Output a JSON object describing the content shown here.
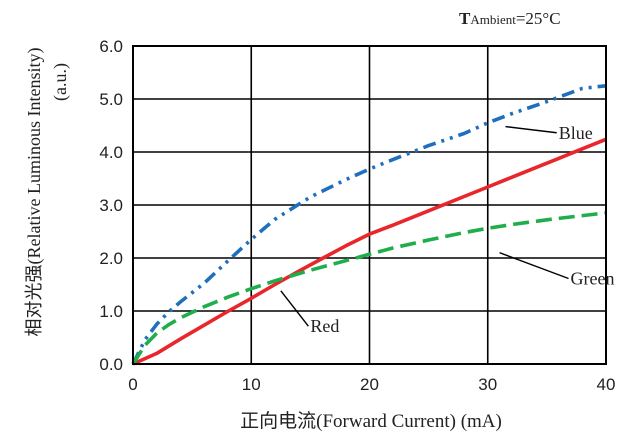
{
  "chart_data": {
    "type": "line",
    "annotation": {
      "T": "T",
      "sub": "Ambient",
      "value": "=25°C"
    },
    "xlabel": "正向电流(Forward Current) (mA)",
    "ylabel": "相对光强(Relative Luminous Intensity)",
    "ylabel_unit": "(a.u.)",
    "xlim": [
      0,
      40
    ],
    "ylim": [
      0,
      6
    ],
    "x_ticks": [
      0,
      10,
      20,
      30,
      40
    ],
    "y_ticks": [
      "0.0",
      "1.0",
      "2.0",
      "3.0",
      "4.0",
      "5.0",
      "6.0"
    ],
    "grid": true,
    "series": [
      {
        "name": "Blue",
        "color": "#1f6fbf",
        "dash": "dash-dot-dot",
        "x": [
          0,
          1,
          2,
          3,
          4,
          6,
          8,
          10,
          12,
          15,
          18,
          20,
          22,
          25,
          28,
          30,
          32,
          35,
          38,
          40
        ],
        "y": [
          0,
          0.45,
          0.75,
          0.98,
          1.17,
          1.52,
          1.94,
          2.35,
          2.73,
          3.15,
          3.48,
          3.68,
          3.86,
          4.12,
          4.35,
          4.55,
          4.72,
          4.95,
          5.2,
          5.25
        ]
      },
      {
        "name": "Red",
        "color": "#e8262b",
        "dash": "solid",
        "x": [
          0,
          2,
          4,
          6,
          8,
          10,
          12,
          14,
          16,
          18,
          20,
          22,
          24,
          26,
          28,
          30,
          32,
          34,
          36,
          38,
          40
        ],
        "y": [
          0,
          0.2,
          0.47,
          0.73,
          0.99,
          1.24,
          1.5,
          1.75,
          1.99,
          2.23,
          2.45,
          2.62,
          2.8,
          2.98,
          3.16,
          3.34,
          3.52,
          3.7,
          3.88,
          4.06,
          4.24
        ]
      },
      {
        "name": "Green",
        "color": "#1fae4b",
        "dash": "dash",
        "x": [
          0,
          1,
          2,
          3,
          4,
          6,
          8,
          10,
          12,
          15,
          18,
          20,
          22,
          25,
          28,
          30,
          32,
          35,
          38,
          40
        ],
        "y": [
          0,
          0.35,
          0.58,
          0.74,
          0.87,
          1.08,
          1.26,
          1.42,
          1.57,
          1.77,
          1.95,
          2.07,
          2.19,
          2.34,
          2.48,
          2.56,
          2.63,
          2.72,
          2.8,
          2.85
        ]
      }
    ],
    "series_labels": [
      {
        "name": "Blue",
        "text": "Blue",
        "at": [
          36.0,
          4.25
        ],
        "leader_to": [
          31.5,
          4.48
        ]
      },
      {
        "name": "Green",
        "text": "Green",
        "at": [
          37.0,
          1.5
        ],
        "leader_to": [
          31.0,
          2.1
        ]
      },
      {
        "name": "Red",
        "text": "Red",
        "at": [
          15.0,
          0.6
        ],
        "leader_to": [
          12.5,
          1.38
        ]
      }
    ]
  }
}
